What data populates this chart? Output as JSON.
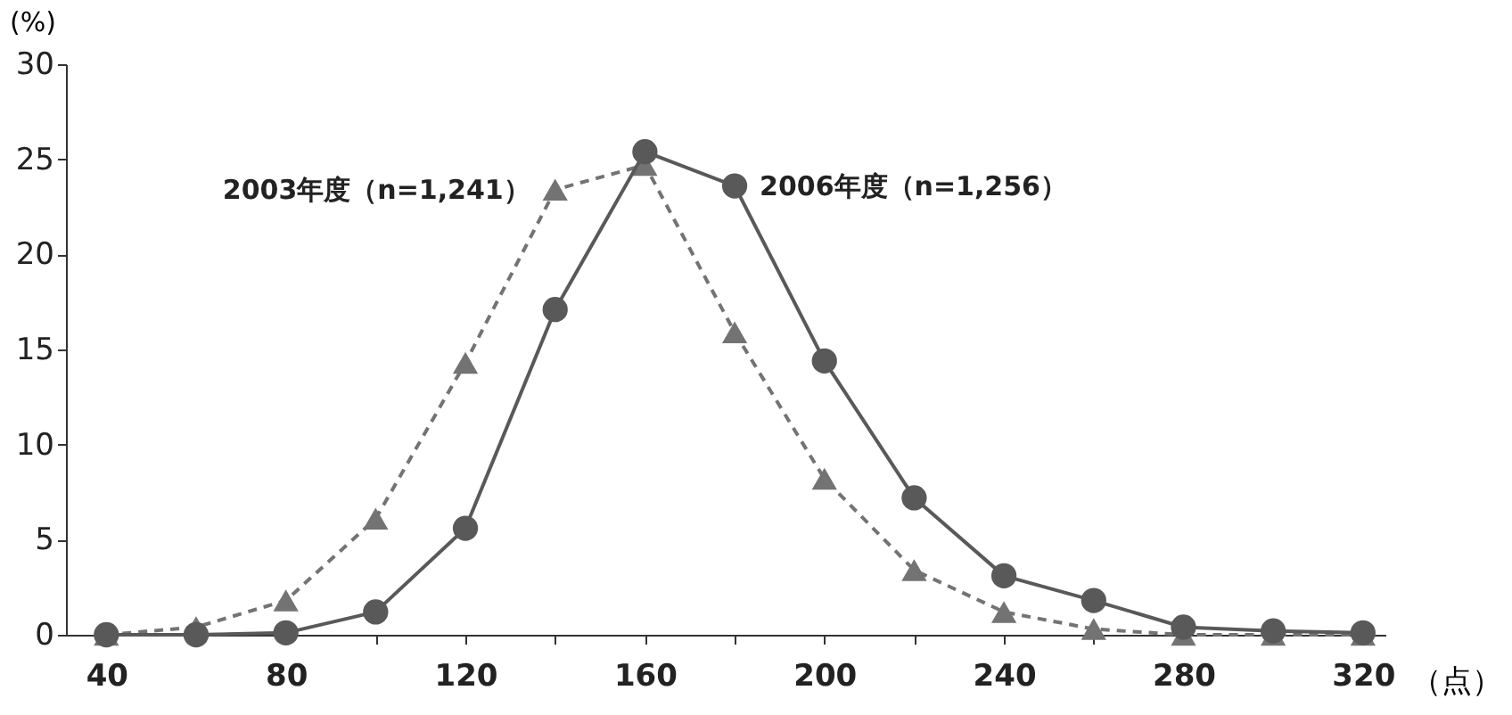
{
  "chart_data": {
    "type": "line",
    "xlabel": "（点）",
    "ylabel": "(%)",
    "x": [
      40,
      60,
      80,
      100,
      120,
      140,
      160,
      180,
      200,
      220,
      240,
      260,
      280,
      300,
      320
    ],
    "series": [
      {
        "name": "2003年度（n=1,241）",
        "color": "#737373",
        "line_style": "dashed",
        "marker": "triangle",
        "values": [
          0,
          0.4,
          1.8,
          6.1,
          14.3,
          23.4,
          24.7,
          15.9,
          8.2,
          3.4,
          1.2,
          0.3,
          0,
          0,
          0
        ]
      },
      {
        "name": "2006年度（n=1,256）",
        "color": "#595959",
        "line_style": "solid",
        "marker": "circle",
        "values": [
          0,
          0,
          0.1,
          1.2,
          5.6,
          17.1,
          25.4,
          23.6,
          14.4,
          7.2,
          3.1,
          1.8,
          0.4,
          0.2,
          0.1
        ]
      }
    ],
    "xlim": [
      31,
      325
    ],
    "xticks": [
      40,
      {
        "value": 60,
        "label": null
      },
      80,
      {
        "value": 100,
        "label": null
      },
      120,
      {
        "value": 140,
        "label": null
      },
      160,
      {
        "value": 180,
        "label": null
      },
      200,
      {
        "value": 220,
        "label": null
      },
      240,
      {
        "value": 260,
        "label": null
      },
      280,
      {
        "value": 300,
        "label": null
      },
      320
    ],
    "ylim": [
      0,
      30
    ],
    "yticks": [
      0,
      5,
      10,
      15,
      20,
      25,
      30
    ],
    "grid": false
  }
}
